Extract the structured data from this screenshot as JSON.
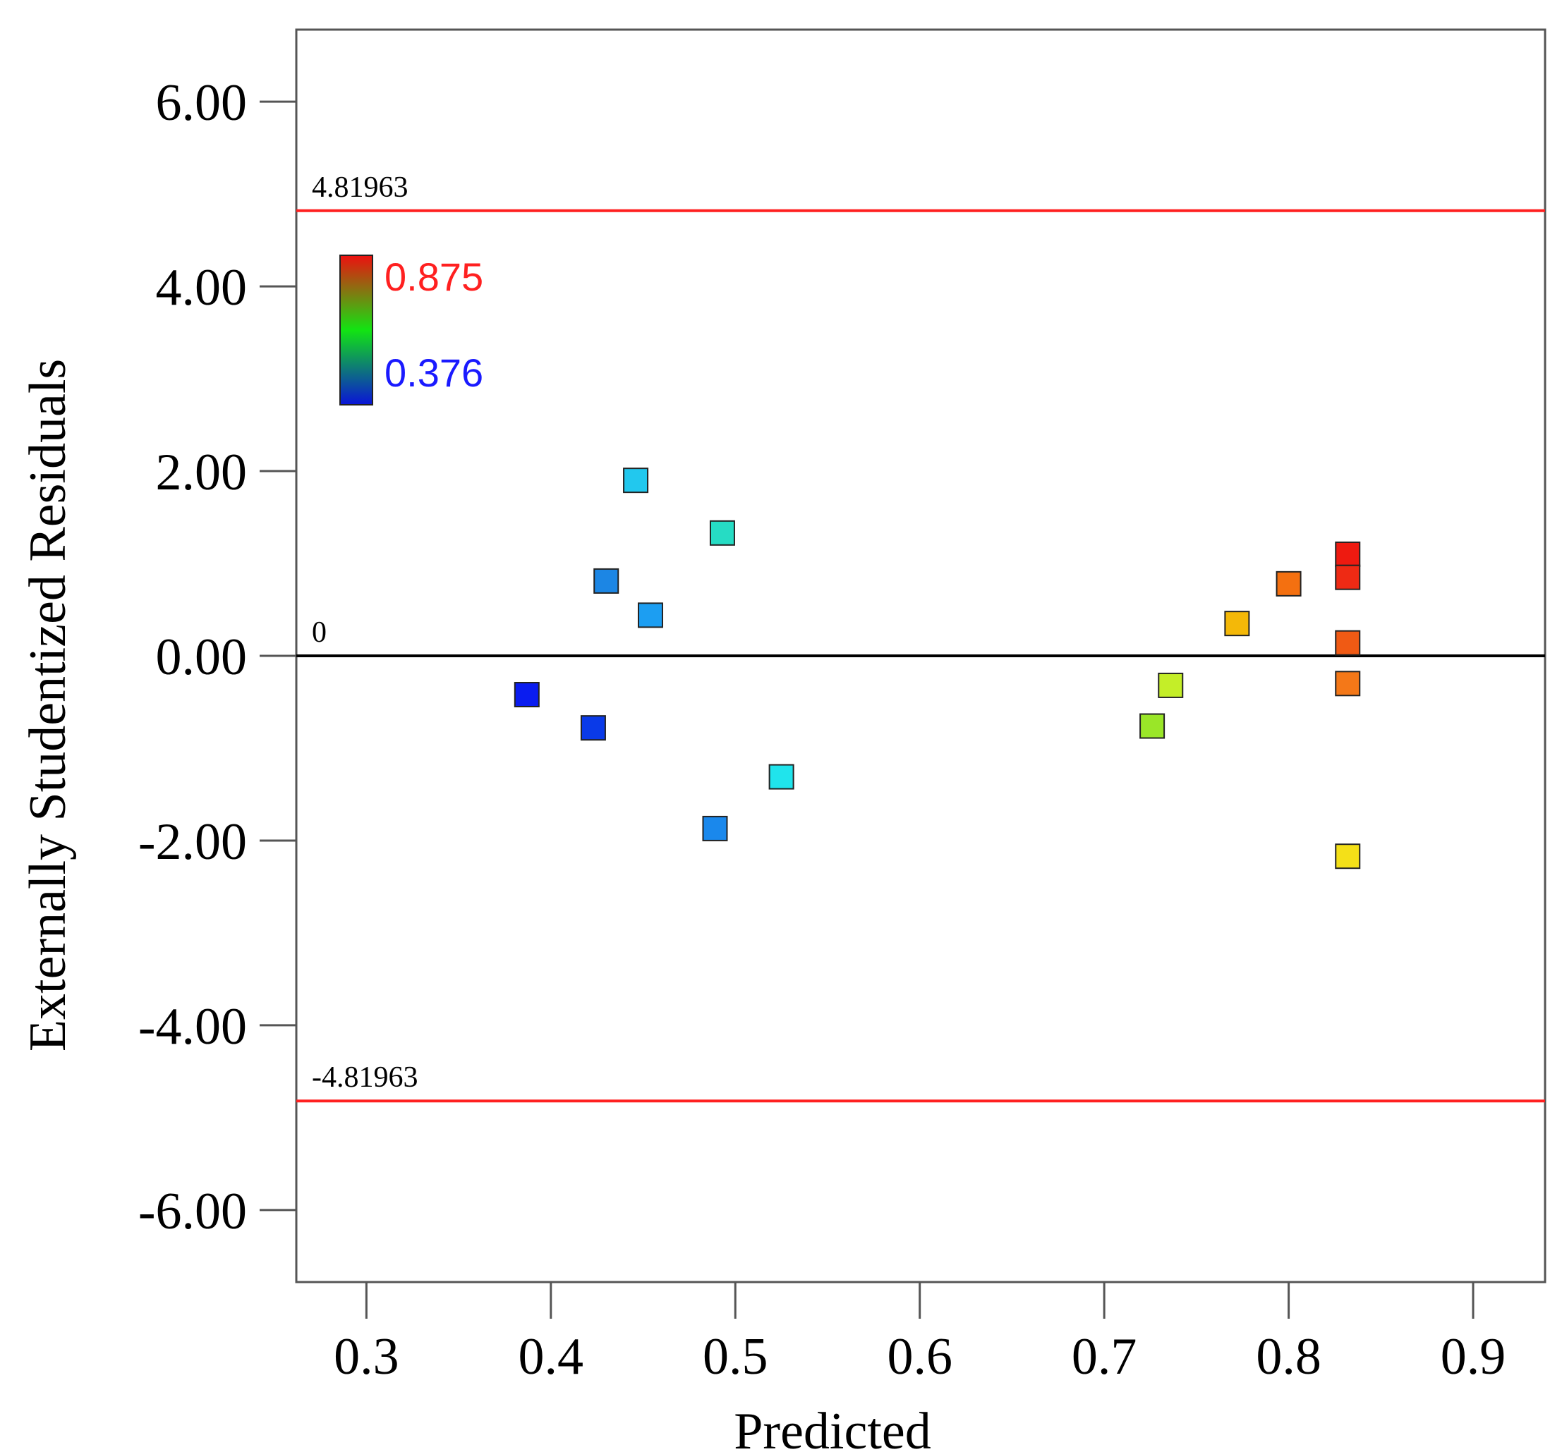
{
  "chart_data": {
    "type": "scatter",
    "xlabel": "Predicted",
    "ylabel": "Externally Studentized Residuals",
    "xlim": [
      0.262,
      0.939
    ],
    "ylim": [
      -6.78,
      6.78
    ],
    "x_ticks": [
      0.3,
      0.4,
      0.5,
      0.6,
      0.7,
      0.8,
      0.9
    ],
    "x_tick_labels": [
      "0.3",
      "0.4",
      "0.5",
      "0.6",
      "0.7",
      "0.8",
      "0.9"
    ],
    "y_ticks": [
      6,
      4,
      2,
      0,
      -2,
      -4,
      -6
    ],
    "y_tick_labels": [
      "6.00",
      "4.00",
      "2.00",
      "0.00",
      "-2.00",
      "-4.00",
      "-6.00"
    ],
    "reference_lines": [
      {
        "value": 4.81963,
        "label": "4.81963",
        "color": "#ff2020"
      },
      {
        "value": 0,
        "label": "0",
        "color": "#000000"
      },
      {
        "value": -4.81963,
        "label": "-4.81963",
        "color": "#ff2020"
      }
    ],
    "color_scale": {
      "max_label": "0.875",
      "min_label": "0.376",
      "max_color": "#ff2020",
      "min_color": "#1a1aff"
    },
    "points": [
      {
        "x": 0.387,
        "y": -0.42,
        "color": "#0a1cf0"
      },
      {
        "x": 0.423,
        "y": -0.78,
        "color": "#0a3ae8"
      },
      {
        "x": 0.43,
        "y": 0.81,
        "color": "#1c86e4"
      },
      {
        "x": 0.446,
        "y": 1.9,
        "color": "#22c8ee"
      },
      {
        "x": 0.454,
        "y": 0.44,
        "color": "#1c9ef2"
      },
      {
        "x": 0.489,
        "y": -1.87,
        "color": "#1a88ec"
      },
      {
        "x": 0.493,
        "y": 1.33,
        "color": "#26dcc4"
      },
      {
        "x": 0.525,
        "y": -1.31,
        "color": "#20e4ec"
      },
      {
        "x": 0.726,
        "y": -0.76,
        "color": "#9ae628"
      },
      {
        "x": 0.736,
        "y": -0.32,
        "color": "#c4ee28"
      },
      {
        "x": 0.772,
        "y": 0.35,
        "color": "#f4b808"
      },
      {
        "x": 0.8,
        "y": 0.78,
        "color": "#f47010"
      },
      {
        "x": 0.832,
        "y": 1.1,
        "color": "#ee1a10"
      },
      {
        "x": 0.832,
        "y": 0.85,
        "color": "#ee2a14"
      },
      {
        "x": 0.832,
        "y": 0.14,
        "color": "#f05a14"
      },
      {
        "x": 0.832,
        "y": -0.3,
        "color": "#f47818"
      },
      {
        "x": 0.832,
        "y": -2.17,
        "color": "#f4e018"
      }
    ]
  }
}
